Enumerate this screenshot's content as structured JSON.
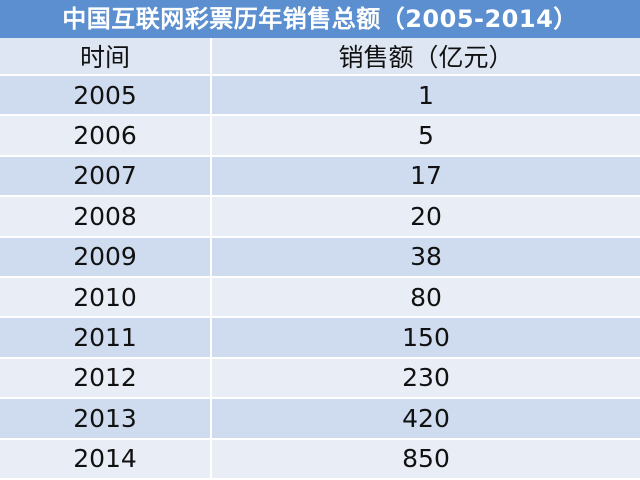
{
  "chart_data": {
    "type": "table",
    "title": "中国互联网彩票历年销售总额（2005-2014）",
    "columns": [
      "时间",
      "销售额（亿元）"
    ],
    "rows": [
      [
        "2005",
        "1"
      ],
      [
        "2006",
        "5"
      ],
      [
        "2007",
        "17"
      ],
      [
        "2008",
        "20"
      ],
      [
        "2009",
        "38"
      ],
      [
        "2010",
        "80"
      ],
      [
        "2011",
        "150"
      ],
      [
        "2012",
        "230"
      ],
      [
        "2013",
        "420"
      ],
      [
        "2014",
        "850"
      ]
    ]
  },
  "colors": {
    "title_bg": "#5b8fd0",
    "header_bg": "#dde6f2",
    "row_dark": "#cfdbee",
    "row_light": "#e8edf6"
  }
}
